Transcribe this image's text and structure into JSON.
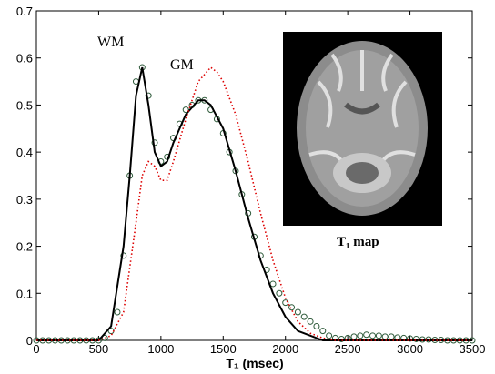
{
  "chart_data": {
    "type": "line",
    "xlabel": "T₁ (msec)",
    "annotations": [
      "WM",
      "GM"
    ],
    "inset_label": "T₁ map",
    "xlim": [
      0,
      3500
    ],
    "xticks": [
      0,
      500,
      1000,
      1500,
      2000,
      2500,
      3000,
      3500
    ],
    "ylim": [
      0,
      0.7
    ],
    "yticks": [
      0,
      0.1,
      0.2,
      0.3,
      0.4,
      0.5,
      0.6,
      0.7
    ],
    "series": [
      {
        "style": "markers",
        "color": "#2e5a3a",
        "x": [
          0,
          50,
          100,
          150,
          200,
          250,
          300,
          350,
          400,
          450,
          500,
          550,
          600,
          650,
          700,
          750,
          800,
          850,
          900,
          950,
          1000,
          1050,
          1100,
          1150,
          1200,
          1250,
          1300,
          1350,
          1400,
          1450,
          1500,
          1550,
          1600,
          1650,
          1700,
          1750,
          1800,
          1850,
          1900,
          1950,
          2000,
          2050,
          2100,
          2150,
          2200,
          2250,
          2300,
          2350,
          2400,
          2450,
          2500,
          2550,
          2600,
          2650,
          2700,
          2750,
          2800,
          2850,
          2900,
          2950,
          3000,
          3050,
          3100,
          3150,
          3200,
          3250,
          3300,
          3350,
          3400,
          3450,
          3500
        ],
        "values": [
          0,
          0,
          0,
          0,
          0,
          0,
          0,
          0,
          0,
          0,
          0,
          0.005,
          0.02,
          0.06,
          0.18,
          0.35,
          0.55,
          0.58,
          0.52,
          0.42,
          0.38,
          0.39,
          0.43,
          0.46,
          0.49,
          0.5,
          0.51,
          0.51,
          0.49,
          0.47,
          0.44,
          0.4,
          0.36,
          0.31,
          0.27,
          0.22,
          0.18,
          0.15,
          0.12,
          0.1,
          0.08,
          0.07,
          0.06,
          0.05,
          0.04,
          0.03,
          0.02,
          0.01,
          0.005,
          0.003,
          0.005,
          0.008,
          0.01,
          0.012,
          0.01,
          0.01,
          0.008,
          0.008,
          0.006,
          0.005,
          0.004,
          0.003,
          0.002,
          0.002,
          0.001,
          0.001,
          0,
          0,
          0,
          0,
          0
        ]
      },
      {
        "style": "solid",
        "color": "#000000",
        "x": [
          0,
          500,
          600,
          700,
          750,
          800,
          850,
          900,
          950,
          1000,
          1050,
          1100,
          1200,
          1300,
          1350,
          1400,
          1500,
          1600,
          1700,
          1800,
          1900,
          2000,
          2100,
          2200,
          2300,
          3500
        ],
        "values": [
          0,
          0,
          0.03,
          0.2,
          0.35,
          0.52,
          0.58,
          0.5,
          0.4,
          0.37,
          0.38,
          0.42,
          0.48,
          0.51,
          0.51,
          0.5,
          0.45,
          0.36,
          0.26,
          0.17,
          0.1,
          0.05,
          0.02,
          0.01,
          0,
          0
        ]
      },
      {
        "style": "dotted",
        "color": "#dd0000",
        "x": [
          0,
          500,
          600,
          700,
          800,
          850,
          900,
          950,
          1000,
          1050,
          1100,
          1200,
          1300,
          1400,
          1450,
          1500,
          1600,
          1700,
          1800,
          1900,
          2000,
          2100,
          2200,
          2300,
          2400,
          3500
        ],
        "values": [
          0,
          0,
          0.01,
          0.06,
          0.25,
          0.35,
          0.38,
          0.37,
          0.34,
          0.34,
          0.38,
          0.47,
          0.55,
          0.58,
          0.57,
          0.55,
          0.48,
          0.38,
          0.27,
          0.17,
          0.09,
          0.04,
          0.015,
          0.005,
          0,
          0
        ]
      }
    ]
  }
}
